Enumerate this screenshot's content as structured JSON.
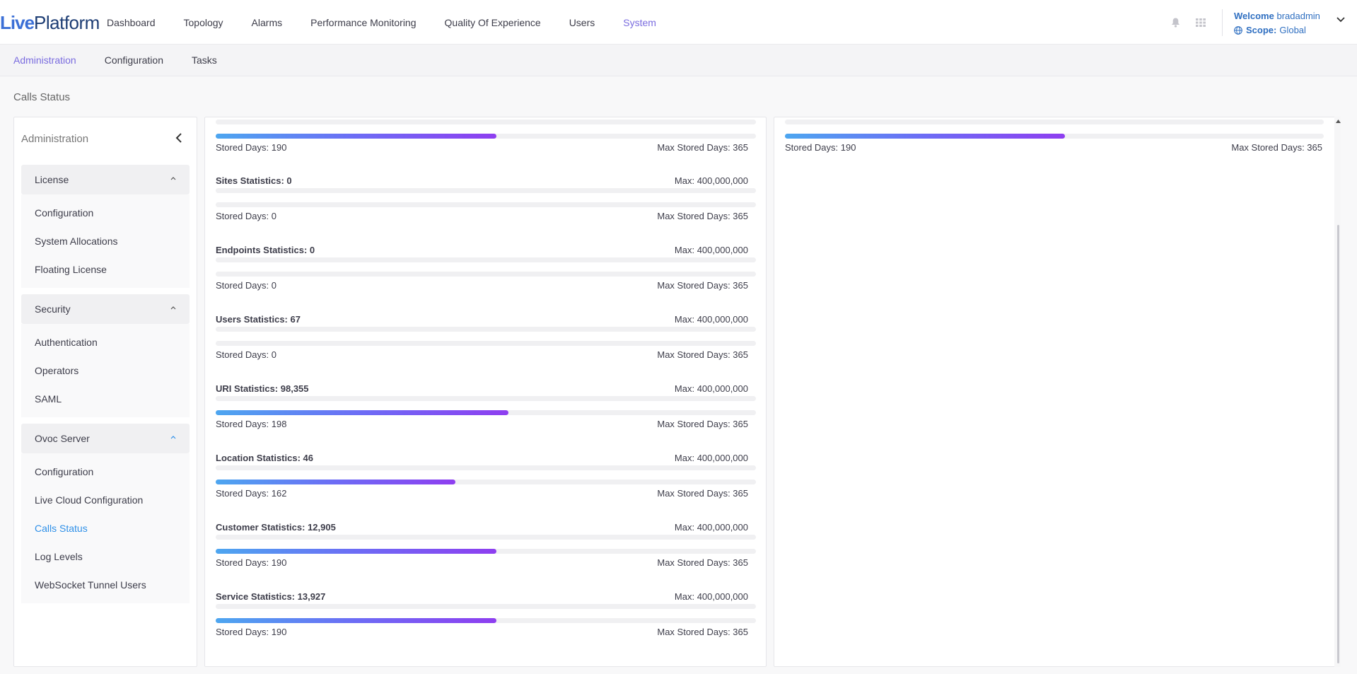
{
  "app": {
    "logo_part1": "Live",
    "logo_part2": "Platform"
  },
  "nav": [
    {
      "label": "Dashboard",
      "active": false
    },
    {
      "label": "Topology",
      "active": false
    },
    {
      "label": "Alarms",
      "active": false
    },
    {
      "label": "Performance Monitoring",
      "active": false
    },
    {
      "label": "Quality Of Experience",
      "active": false
    },
    {
      "label": "Users",
      "active": false
    },
    {
      "label": "System",
      "active": true
    }
  ],
  "user": {
    "welcome_label": "Welcome",
    "username": "bradadmin",
    "scope_label": "Scope:",
    "scope_value": "Global"
  },
  "subnav": [
    {
      "label": "Administration",
      "active": true
    },
    {
      "label": "Configuration",
      "active": false
    },
    {
      "label": "Tasks",
      "active": false
    }
  ],
  "page_title": "Calls Status",
  "sidebar": {
    "title": "Administration",
    "groups": [
      {
        "label": "License",
        "items": [
          "Configuration",
          "System Allocations",
          "Floating License"
        ]
      },
      {
        "label": "Security",
        "items": [
          "Authentication",
          "Operators",
          "SAML"
        ]
      },
      {
        "label": "Ovoc Server",
        "items": [
          "Configuration",
          "Live Cloud Configuration",
          "Calls Status",
          "Log Levels",
          "WebSocket Tunnel Users"
        ]
      }
    ],
    "active_item": "Calls Status"
  },
  "left_panel": {
    "top_partial": {
      "stored_days": "Stored Days: 190",
      "max_stored_days": "Max Stored Days: 365",
      "days_fraction": 0.52
    },
    "stats": [
      {
        "title": "Sites Statistics: 0",
        "max": "Max: 400,000,000",
        "stored_days": "Stored Days: 0",
        "max_stored_days": "Max Stored Days: 365",
        "count_fraction": 0,
        "days_fraction": 0
      },
      {
        "title": "Endpoints Statistics: 0",
        "max": "Max: 400,000,000",
        "stored_days": "Stored Days: 0",
        "max_stored_days": "Max Stored Days: 365",
        "count_fraction": 0,
        "days_fraction": 0
      },
      {
        "title": "Users Statistics: 67",
        "max": "Max: 400,000,000",
        "stored_days": "Stored Days: 0",
        "max_stored_days": "Max Stored Days: 365",
        "count_fraction": 0,
        "days_fraction": 0
      },
      {
        "title": "URI Statistics: 98,355",
        "max": "Max: 400,000,000",
        "stored_days": "Stored Days: 198",
        "max_stored_days": "Max Stored Days: 365",
        "count_fraction": 0,
        "days_fraction": 0.542
      },
      {
        "title": "Location Statistics: 46",
        "max": "Max: 400,000,000",
        "stored_days": "Stored Days: 162",
        "max_stored_days": "Max Stored Days: 365",
        "count_fraction": 0,
        "days_fraction": 0.444
      },
      {
        "title": "Customer Statistics: 12,905",
        "max": "Max: 400,000,000",
        "stored_days": "Stored Days: 190",
        "max_stored_days": "Max Stored Days: 365",
        "count_fraction": 0,
        "days_fraction": 0.52
      },
      {
        "title": "Service Statistics: 13,927",
        "max": "Max: 400,000,000",
        "stored_days": "Stored Days: 190",
        "max_stored_days": "Max Stored Days: 365",
        "count_fraction": 0,
        "days_fraction": 0.52
      }
    ]
  },
  "right_panel": {
    "top_partial": {
      "stored_days": "Stored Days: 190",
      "max_stored_days": "Max Stored Days: 365",
      "days_fraction": 0.52
    }
  },
  "colors": {
    "accent": "#7a6cdf",
    "link_blue": "#2f90e8",
    "bar_gradient_start": "#4da6f0",
    "bar_gradient_end": "#8e3ef0"
  }
}
